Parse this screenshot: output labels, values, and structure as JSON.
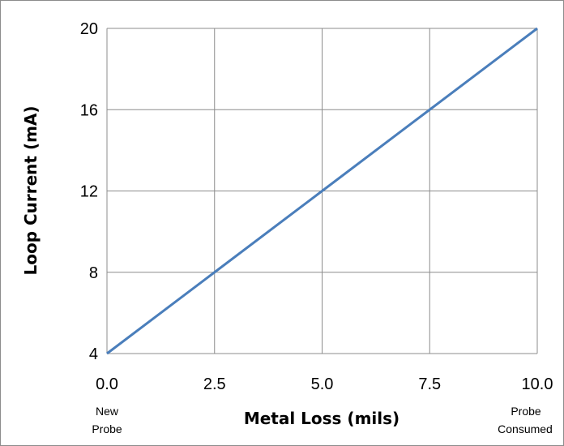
{
  "chart_data": {
    "type": "line",
    "title": "",
    "xlabel": "Metal Loss (mils)",
    "ylabel": "Loop Current (mA)",
    "xlim": [
      0,
      10
    ],
    "ylim": [
      4,
      20
    ],
    "x_ticks": [
      "0.0",
      "2.5",
      "5.0",
      "7.5",
      "10.0"
    ],
    "y_ticks": [
      "4",
      "8",
      "12",
      "16",
      "20"
    ],
    "grid": true,
    "legend": "none",
    "series": [
      {
        "color": "#4a7ebb",
        "x": [
          0,
          2.5,
          5,
          7.5,
          10
        ],
        "y": [
          4,
          8,
          12,
          16,
          20
        ]
      }
    ],
    "annotations": {
      "x_start": [
        "New",
        "Probe"
      ],
      "x_end": [
        "Probe",
        "Consumed"
      ]
    }
  }
}
